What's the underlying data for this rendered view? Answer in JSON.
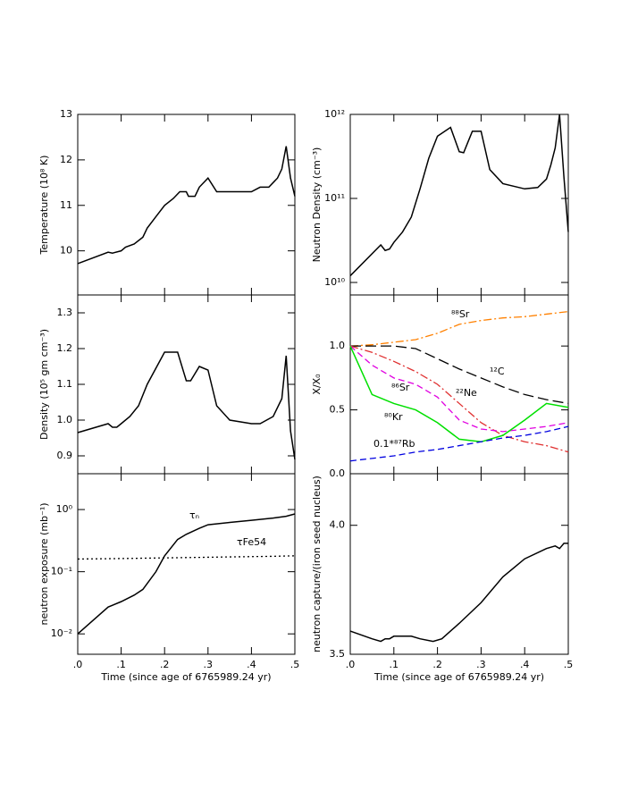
{
  "chart_data": [
    {
      "type": "line",
      "ylabel": "Temperature (10⁸ K)",
      "xlim": [
        0,
        0.5
      ],
      "xticks": [
        0,
        0.1,
        0.2,
        0.3,
        0.4,
        0.5
      ],
      "ylim": [
        9.03,
        13
      ],
      "yticks": [
        10,
        11,
        12,
        13
      ],
      "log_y": false,
      "x": [
        0,
        0.07,
        0.08,
        0.1,
        0.11,
        0.13,
        0.15,
        0.16,
        0.18,
        0.2,
        0.22,
        0.235,
        0.25,
        0.255,
        0.27,
        0.28,
        0.3,
        0.32,
        0.35,
        0.4,
        0.42,
        0.44,
        0.45,
        0.46,
        0.47,
        0.48,
        0.49,
        0.5
      ],
      "series": [
        {
          "color": "#000000",
          "dash": "solid",
          "values": [
            9.72,
            9.97,
            9.95,
            10.0,
            10.08,
            10.15,
            10.3,
            10.5,
            10.75,
            11.0,
            11.15,
            11.3,
            11.3,
            11.2,
            11.2,
            11.4,
            11.6,
            11.3,
            11.3,
            11.3,
            11.4,
            11.4,
            11.5,
            11.6,
            11.8,
            12.3,
            11.6,
            11.2
          ]
        }
      ]
    },
    {
      "type": "line",
      "ylabel": "Neutron Density (cm⁻³)",
      "xlim": [
        0,
        0.5
      ],
      "xticks": [
        0,
        0.1,
        0.2,
        0.3,
        0.4,
        0.5
      ],
      "ylim": [
        7100000000,
        1000000000000
      ],
      "yticks": [
        {
          "value": 10000000000,
          "label": "10¹⁰"
        },
        {
          "value": 100000000000,
          "label": "10¹¹"
        },
        {
          "value": 1000000000000,
          "label": "10¹²"
        }
      ],
      "log_y": true,
      "x": [
        0,
        0.07,
        0.08,
        0.09,
        0.1,
        0.12,
        0.14,
        0.16,
        0.18,
        0.2,
        0.23,
        0.25,
        0.26,
        0.27,
        0.28,
        0.3,
        0.32,
        0.35,
        0.4,
        0.43,
        0.45,
        0.46,
        0.47,
        0.48,
        0.49,
        0.5
      ],
      "series": [
        {
          "color": "#000000",
          "dash": "solid",
          "values": [
            12000000000,
            28000000000,
            24000000000,
            25000000000,
            30000000000,
            40000000000,
            60000000000,
            130000000000,
            300000000000,
            550000000000,
            700000000000,
            360000000000,
            350000000000,
            470000000000,
            630000000000,
            630000000000,
            220000000000,
            150000000000,
            130000000000,
            135000000000,
            170000000000,
            250000000000,
            400000000000,
            1000000000000,
            180000000000,
            40000000000
          ]
        }
      ]
    },
    {
      "type": "line",
      "ylabel": "Density (10⁵ gm cm⁻³)",
      "xlim": [
        0,
        0.5
      ],
      "xticks": [
        0,
        0.1,
        0.2,
        0.3,
        0.4,
        0.5
      ],
      "ylim": [
        0.85,
        1.35
      ],
      "yticks": [
        0.9,
        {
          "value": 1.0,
          "label": "1.0"
        },
        1.1,
        1.2,
        1.3
      ],
      "log_y": false,
      "x": [
        0,
        0.07,
        0.08,
        0.09,
        0.1,
        0.12,
        0.14,
        0.16,
        0.2,
        0.23,
        0.25,
        0.26,
        0.28,
        0.3,
        0.32,
        0.35,
        0.4,
        0.42,
        0.45,
        0.47,
        0.48,
        0.49,
        0.5
      ],
      "series": [
        {
          "color": "#000000",
          "dash": "solid",
          "values": [
            0.965,
            0.99,
            0.98,
            0.98,
            0.99,
            1.01,
            1.04,
            1.1,
            1.19,
            1.19,
            1.11,
            1.11,
            1.15,
            1.14,
            1.04,
            1.0,
            0.99,
            0.99,
            1.01,
            1.06,
            1.18,
            0.97,
            0.89
          ]
        }
      ]
    },
    {
      "type": "line",
      "ylabel": "X/X₀",
      "xlim": [
        0,
        0.5
      ],
      "xticks": [
        0,
        0.1,
        0.2,
        0.3,
        0.4,
        0.5
      ],
      "ylim": [
        0,
        1.4
      ],
      "yticks": [
        {
          "value": 0,
          "label": "0.0"
        },
        0.5,
        {
          "value": 1.0,
          "label": "1.0"
        }
      ],
      "log_y": false,
      "x": [
        0,
        0.05,
        0.1,
        0.15,
        0.2,
        0.25,
        0.3,
        0.35,
        0.4,
        0.45,
        0.5
      ],
      "series": [
        {
          "name": "⁸⁸Sr",
          "color": "#ff8000",
          "dash": "dashdot",
          "values": [
            1.0,
            1.01,
            1.03,
            1.05,
            1.1,
            1.17,
            1.2,
            1.22,
            1.23,
            1.25,
            1.27
          ]
        },
        {
          "name": "¹²C",
          "color": "#000000",
          "dash": "longdash",
          "values": [
            1.0,
            1.0,
            1.0,
            0.98,
            0.9,
            0.82,
            0.75,
            0.68,
            0.62,
            0.58,
            0.55
          ]
        },
        {
          "name": "²²Ne",
          "color": "#e03030",
          "dash": "dashdot",
          "values": [
            1.0,
            0.95,
            0.88,
            0.8,
            0.7,
            0.55,
            0.4,
            0.3,
            0.25,
            0.22,
            0.17
          ]
        },
        {
          "name": "⁸⁶Sr",
          "color": "#e000e0",
          "dash": "dashed",
          "values": [
            1.0,
            0.85,
            0.75,
            0.7,
            0.6,
            0.42,
            0.35,
            0.33,
            0.35,
            0.37,
            0.4
          ]
        },
        {
          "name": "⁸⁰Kr",
          "color": "#00e000",
          "dash": "solid",
          "values": [
            1.0,
            0.62,
            0.55,
            0.5,
            0.4,
            0.27,
            0.25,
            0.3,
            0.42,
            0.55,
            0.52
          ]
        },
        {
          "name": "0.1*⁸⁷Rb",
          "color": "#0000e0",
          "dash": "dashed",
          "values": [
            0.1,
            0.12,
            0.14,
            0.17,
            0.19,
            0.22,
            0.25,
            0.28,
            0.3,
            0.33,
            0.37
          ]
        }
      ]
    },
    {
      "type": "line",
      "ylabel": "neutron exposure (mb⁻¹)",
      "xlabel": "Time (since age of 6765989.24 yr)",
      "xlim": [
        0,
        0.5
      ],
      "xticks": [
        {
          "value": 0,
          "label": ".0"
        },
        {
          "value": 0.1,
          "label": ".1"
        },
        {
          "value": 0.2,
          "label": ".2"
        },
        {
          "value": 0.3,
          "label": ".3"
        },
        {
          "value": 0.4,
          "label": ".4"
        },
        {
          "value": 0.5,
          "label": ".5"
        }
      ],
      "ylim": [
        0.0047,
        3.77
      ],
      "yticks": [
        {
          "value": 0.01,
          "label": "10⁻²"
        },
        {
          "value": 0.1,
          "label": "10⁻¹"
        },
        {
          "value": 1,
          "label": "10⁰"
        }
      ],
      "log_y": true,
      "x": [
        0,
        0.07,
        0.1,
        0.13,
        0.15,
        0.18,
        0.2,
        0.23,
        0.25,
        0.28,
        0.3,
        0.35,
        0.4,
        0.45,
        0.48,
        0.5
      ],
      "series": [
        {
          "name": "τₙ",
          "color": "#000000",
          "dash": "solid",
          "values": [
            0.01,
            0.027,
            0.033,
            0.042,
            0.052,
            0.1,
            0.18,
            0.33,
            0.4,
            0.5,
            0.57,
            0.62,
            0.67,
            0.73,
            0.78,
            0.85
          ]
        },
        {
          "name": "τFe54",
          "color": "#000000",
          "dash": "dotted",
          "values": [
            0.16,
            0.162,
            0.163,
            0.164,
            0.165,
            0.166,
            0.167,
            0.168,
            0.169,
            0.17,
            0.171,
            0.173,
            0.175,
            0.177,
            0.179,
            0.18
          ]
        }
      ]
    },
    {
      "type": "line",
      "ylabel": "neutron capture/(iron seed nucleus)",
      "xlabel": "Time (since age of 6765989.24 yr)",
      "xlim": [
        0,
        0.5
      ],
      "xticks": [
        {
          "value": 0,
          "label": ".0"
        },
        {
          "value": 0.1,
          "label": ".1"
        },
        {
          "value": 0.2,
          "label": ".2"
        },
        {
          "value": 0.3,
          "label": ".3"
        },
        {
          "value": 0.4,
          "label": ".4"
        },
        {
          "value": 0.5,
          "label": ".5"
        }
      ],
      "ylim": [
        3.5,
        4.2
      ],
      "yticks": [
        3.5,
        {
          "value": 4.0,
          "label": "4.0"
        }
      ],
      "log_y": false,
      "x": [
        0,
        0.05,
        0.07,
        0.08,
        0.09,
        0.1,
        0.14,
        0.16,
        0.19,
        0.21,
        0.25,
        0.3,
        0.35,
        0.4,
        0.45,
        0.47,
        0.48,
        0.49,
        0.5
      ],
      "series": [
        {
          "color": "#000000",
          "dash": "solid",
          "values": [
            3.59,
            3.56,
            3.55,
            3.56,
            3.56,
            3.57,
            3.57,
            3.56,
            3.55,
            3.56,
            3.62,
            3.7,
            3.8,
            3.87,
            3.91,
            3.92,
            3.91,
            3.93,
            3.93
          ]
        }
      ]
    }
  ]
}
